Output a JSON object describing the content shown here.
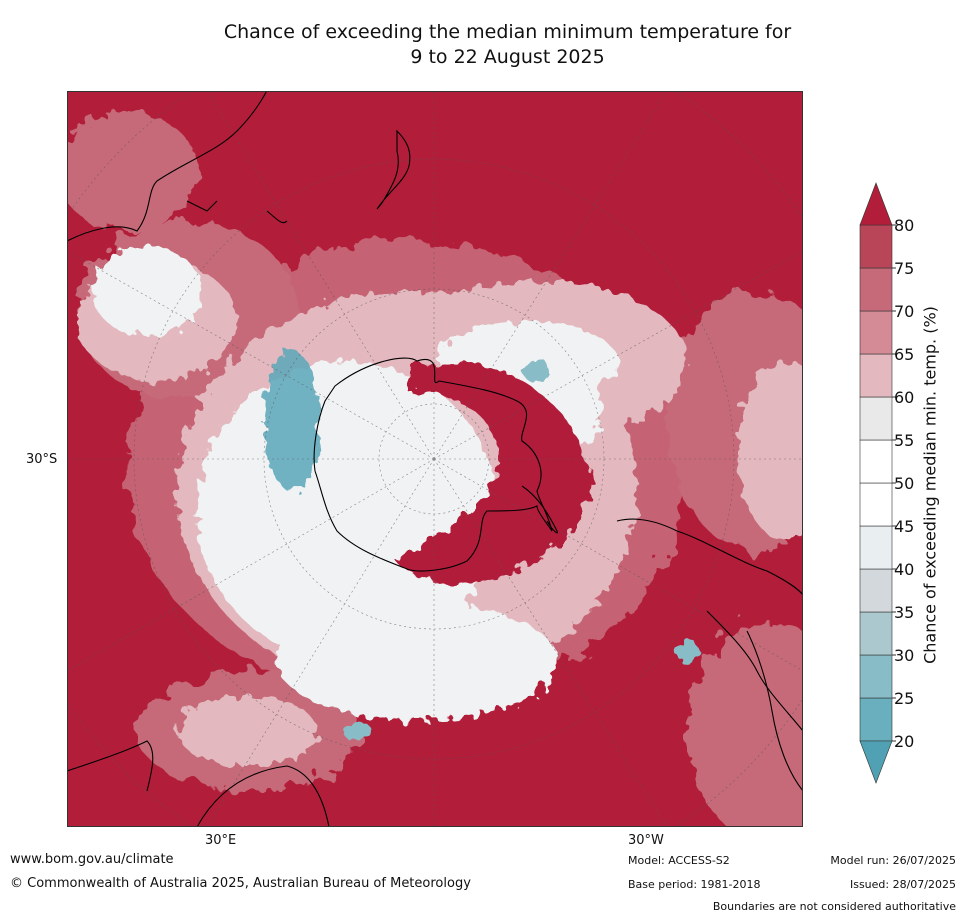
{
  "title_line1": "Chance of exceeding the median minimum temperature for",
  "title_line2": "9 to 22 August 2025",
  "axis_ticks": {
    "left": "30°S",
    "bottom_left": "30°E",
    "bottom_right": "30°W"
  },
  "colorbar": {
    "label": "Chance of exceeding median min. temp. (%)",
    "levels": [
      "20",
      "25",
      "30",
      "35",
      "40",
      "45",
      "50",
      "55",
      "60",
      "65",
      "70",
      "75",
      "80"
    ],
    "colors": [
      "#4fa1b3",
      "#6aafbd",
      "#88bcc6",
      "#aac8cd",
      "#d2d8db",
      "#e9eef1",
      "#ffffff",
      "#ffffff",
      "#e9e9e9",
      "#e3b9bf",
      "#d58b96",
      "#c66a79",
      "#b84558",
      "#b21e3a"
    ],
    "low_extend_color": "#4fa1b3",
    "high_extend_color": "#b21e3a"
  },
  "map_colors": {
    "high": "#b21e3a",
    "med_high": "#c66a79",
    "light_pink": "#e3b9bf",
    "neutral": "#f0f2f3",
    "blue": "#5aa7b8"
  },
  "footer": {
    "url": "www.bom.gov.au/climate",
    "copyright": "© Commonwealth of Australia 2025, Australian Bureau of Meteorology",
    "model": "Model: ACCESS-S2",
    "base_period": "Base period: 1981-2018",
    "model_run": "Model run: 26/07/2025",
    "issued": "Issued: 28/07/2025",
    "disclaimer": "Boundaries are not considered authoritative"
  }
}
